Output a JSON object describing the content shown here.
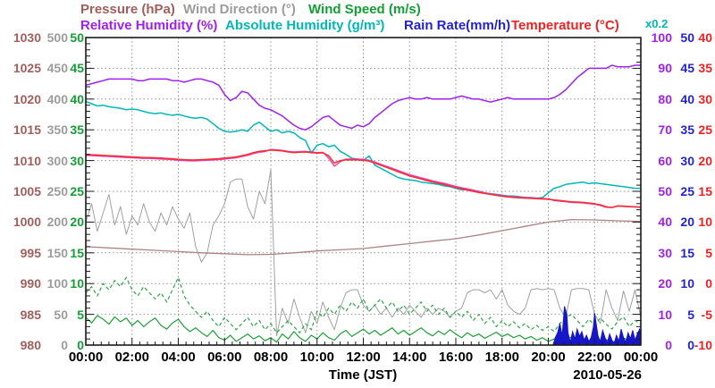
{
  "legend": {
    "row1": [
      {
        "id": "pressure",
        "label": "Pressure (hPa)",
        "color": "#a25d5d"
      },
      {
        "id": "wind-direction",
        "label": "Wind Direction (°)",
        "color": "#9c9c9c"
      },
      {
        "id": "wind-speed",
        "label": "Wind Speed (m/s)",
        "color": "#12a035"
      }
    ],
    "row2": [
      {
        "id": "relative-humidity",
        "label": "Relative Humidity (%)",
        "color": "#a020f0"
      },
      {
        "id": "absolute-humidity",
        "label": "Absolute Humidity (g/m³)",
        "color": "#00b7b7"
      },
      {
        "id": "rain-rate",
        "label": "Rain Rate(mm/h)",
        "color": "#2323cd"
      },
      {
        "id": "temperature",
        "label": "Temperature (°C)",
        "color": "#ee2222"
      }
    ],
    "scale_note": {
      "label": "x0.2",
      "color": "#00b7b7"
    }
  },
  "x_axis": {
    "labels": [
      "00:00",
      "02:00",
      "04:00",
      "06:00",
      "08:00",
      "10:00",
      "12:00",
      "14:00",
      "16:00",
      "18:00",
      "20:00",
      "22:00",
      "00:00"
    ],
    "title": "Time (JST)",
    "date": "2010-05-26"
  },
  "left_axes": [
    {
      "name": "pressure",
      "unit": "hPa",
      "color": "#a25d5d",
      "labels": [
        "1030",
        "1025",
        "1020",
        "1015",
        "1010",
        "1005",
        "1000",
        "995",
        "990",
        "985",
        "980"
      ]
    },
    {
      "name": "wind-direction",
      "unit": "deg",
      "color": "#9c9c9c",
      "labels": [
        "500",
        "450",
        "400",
        "350",
        "300",
        "250",
        "200",
        "150",
        "100",
        "50",
        "0"
      ]
    },
    {
      "name": "wind-speed",
      "unit": "m/s",
      "color": "#12a035",
      "labels": [
        "50",
        "45",
        "40",
        "35",
        "30",
        "25",
        "20",
        "15",
        "10",
        "5",
        "0"
      ]
    }
  ],
  "right_axes": [
    {
      "name": "relative-humidity",
      "unit": "%",
      "color": "#a020f0",
      "labels": [
        "100",
        "90",
        "80",
        "70",
        "60",
        "50",
        "40",
        "30",
        "20",
        "10",
        "0"
      ]
    },
    {
      "name": "rain-rate",
      "unit": "mm/h",
      "color": "#2323cd",
      "labels": [
        "50",
        "45",
        "40",
        "35",
        "30",
        "25",
        "20",
        "15",
        "10",
        "5",
        "0"
      ]
    },
    {
      "name": "temperature",
      "unit": "C",
      "color": "#ee2222",
      "labels": [
        "40",
        "35",
        "30",
        "25",
        "20",
        "15",
        "10",
        "5",
        "0",
        "-5",
        "-10"
      ]
    }
  ],
  "chart_data": {
    "type": "line",
    "title": "Weather observations, 2010-05-26, Time (JST)",
    "x_range_hours": [
      0,
      24
    ],
    "grid": {
      "x_step_hours": 2,
      "y_divisions": 10
    },
    "axes": {
      "pressure": {
        "min": 980,
        "max": 1030
      },
      "wind_direction": {
        "min": 0,
        "max": 500
      },
      "wind_speed": {
        "min": 0,
        "max": 50
      },
      "relative_humidity": {
        "min": 0,
        "max": 100
      },
      "absolute_humidity": {
        "min": 0,
        "max": 20,
        "note": "plotted on humidity axis x0.2"
      },
      "rain_rate": {
        "min": 0,
        "max": 50
      },
      "temperature": {
        "min": -10,
        "max": 40
      }
    },
    "series": [
      {
        "name": "wind_direction",
        "axis": "wind_direction",
        "color": "#a0a0a0",
        "width": 1,
        "x_step_min": 15,
        "values": [
          200,
          230,
          185,
          215,
          245,
          195,
          225,
          180,
          210,
          195,
          230,
          200,
          185,
          215,
          195,
          225,
          205,
          190,
          215,
          160,
          135,
          150,
          195,
          210,
          230,
          265,
          270,
          270,
          225,
          205,
          250,
          230,
          285,
          15,
          60,
          35,
          75,
          45,
          20,
          55,
          35,
          70,
          45,
          25,
          60,
          85,
          90,
          90,
          65,
          55,
          65,
          50,
          60,
          45,
          60,
          50,
          65,
          55,
          45,
          60,
          50,
          60,
          55,
          45,
          55,
          60,
          85,
          90,
          90,
          85,
          90,
          75,
          90,
          65,
          55,
          50,
          60,
          90,
          92,
          90,
          92,
          90,
          60,
          45,
          90,
          92,
          92,
          90,
          50,
          35,
          90,
          60,
          40,
          88,
          55,
          90,
          45
        ]
      },
      {
        "name": "pressure",
        "axis": "pressure",
        "color": "#ad8484",
        "width": 1.3,
        "x_step_min": 60,
        "values": [
          996.0,
          995.8,
          995.6,
          995.4,
          995.2,
          995.0,
          994.85,
          994.7,
          994.75,
          995.0,
          995.3,
          995.5,
          995.7,
          996.1,
          996.5,
          996.9,
          997.3,
          997.9,
          998.6,
          999.3,
          1000.0,
          1000.4,
          1000.35,
          1000.2,
          1000.1
        ]
      },
      {
        "name": "wind_gust",
        "axis": "wind_speed",
        "color": "#2aa546",
        "width": 1.2,
        "dash": "4 3",
        "x_step_min": 15,
        "values": [
          8.5,
          9.5,
          8.0,
          10.0,
          9.0,
          10.5,
          9.5,
          11.0,
          9.0,
          8.0,
          9.5,
          8.5,
          7.5,
          8.5,
          7.0,
          9.0,
          11.0,
          8.0,
          6.5,
          5.5,
          4.5,
          5.5,
          4.0,
          3.0,
          4.5,
          3.5,
          2.5,
          3.5,
          4.5,
          3.0,
          4.0,
          2.5,
          3.5,
          2.0,
          3.0,
          4.0,
          3.0,
          2.0,
          3.5,
          2.5,
          5.5,
          4.5,
          6.0,
          5.0,
          6.5,
          5.5,
          7.0,
          6.0,
          7.5,
          5.5,
          6.5,
          7.5,
          6.0,
          7.0,
          5.5,
          6.5,
          5.0,
          6.0,
          7.0,
          5.5,
          6.5,
          5.0,
          6.0,
          4.5,
          5.5,
          4.5,
          5.5,
          4.0,
          5.0,
          3.5,
          4.5,
          3.0,
          4.0,
          3.0,
          3.8,
          2.8,
          3.5,
          2.5,
          3.2,
          2.4,
          3.0,
          2.2,
          3.5,
          4.5,
          5.0,
          4.0,
          3.0,
          4.2,
          3.2,
          4.4,
          3.4,
          2.6,
          3.8,
          4.6,
          3.0,
          4.0,
          3.4
        ]
      },
      {
        "name": "wind_speed",
        "axis": "wind_speed",
        "color": "#18a035",
        "width": 1.2,
        "x_step_min": 15,
        "values": [
          4.5,
          3.6,
          4.8,
          4.2,
          3.4,
          4.6,
          3.8,
          4.4,
          3.2,
          4.0,
          3.0,
          3.8,
          4.4,
          3.2,
          2.6,
          3.6,
          4.2,
          3.0,
          2.2,
          2.8,
          2.0,
          1.4,
          2.4,
          1.2,
          0.8,
          1.6,
          0.6,
          1.2,
          1.8,
          1.0,
          1.5,
          0.7,
          1.2,
          0.5,
          1.8,
          1.0,
          2.2,
          1.2,
          0.6,
          1.6,
          1.0,
          2.0,
          1.2,
          0.8,
          1.8,
          2.4,
          1.4,
          2.0,
          2.6,
          1.8,
          2.4,
          1.6,
          2.2,
          2.8,
          1.8,
          2.4,
          1.6,
          2.2,
          2.8,
          2.0,
          1.5,
          2.3,
          1.7,
          2.5,
          1.8,
          1.2,
          2.0,
          1.4,
          1.8,
          1.1,
          1.6,
          2.1,
          1.4,
          1.8,
          1.2,
          1.6,
          1.0,
          1.4,
          0.8,
          1.2,
          0.6,
          1.0,
          0.5,
          0.9,
          1.3,
          0.7,
          1.1,
          0.6,
          1.0,
          0.5,
          0.9,
          0.4,
          0.8,
          1.2,
          0.6,
          1.0,
          0.7
        ]
      },
      {
        "name": "rain_rate",
        "axis": "rain_rate",
        "color": "#1717c9",
        "type": "area",
        "width": 1,
        "points": [
          [
            0,
            0
          ],
          [
            20.2,
            0
          ],
          [
            20.3,
            1.2
          ],
          [
            20.4,
            2.0
          ],
          [
            20.5,
            3.5
          ],
          [
            20.6,
            1.5
          ],
          [
            20.7,
            6.3
          ],
          [
            20.8,
            5.0
          ],
          [
            20.85,
            2.0
          ],
          [
            20.95,
            0.5
          ],
          [
            21.05,
            2.2
          ],
          [
            21.15,
            1.0
          ],
          [
            21.25,
            2.6
          ],
          [
            21.35,
            1.4
          ],
          [
            21.45,
            2.2
          ],
          [
            21.55,
            0.8
          ],
          [
            21.65,
            1.6
          ],
          [
            21.75,
            0.6
          ],
          [
            21.85,
            1.2
          ],
          [
            21.95,
            3.0
          ],
          [
            22.0,
            5.2
          ],
          [
            22.05,
            4.0
          ],
          [
            22.15,
            1.5
          ],
          [
            22.25,
            0.6
          ],
          [
            22.35,
            2.4
          ],
          [
            22.45,
            1.2
          ],
          [
            22.55,
            0.4
          ],
          [
            22.65,
            1.8
          ],
          [
            22.75,
            0.8
          ],
          [
            22.85,
            0.3
          ],
          [
            22.95,
            1.6
          ],
          [
            23.05,
            0.6
          ],
          [
            23.15,
            2.6
          ],
          [
            23.25,
            1.2
          ],
          [
            23.35,
            0.5
          ],
          [
            23.45,
            2.0
          ],
          [
            23.55,
            1.0
          ],
          [
            23.65,
            2.4
          ],
          [
            23.75,
            0.8
          ],
          [
            23.85,
            1.8
          ],
          [
            23.95,
            2.6
          ],
          [
            24,
            2.0
          ],
          [
            24,
            0
          ]
        ]
      },
      {
        "name": "absolute_humidity",
        "axis": "absolute_humidity",
        "color": "#00b7b7",
        "width": 1.5,
        "x_step_min": 15,
        "values": [
          15.85,
          15.7,
          15.55,
          15.6,
          15.5,
          15.45,
          15.4,
          15.3,
          15.35,
          15.3,
          15.2,
          15.1,
          15.05,
          15.1,
          15.0,
          14.95,
          15.0,
          14.9,
          14.8,
          14.75,
          14.8,
          14.7,
          14.4,
          14.1,
          13.9,
          13.85,
          13.9,
          14.0,
          13.9,
          14.3,
          14.5,
          14.2,
          13.9,
          14.0,
          13.8,
          13.9,
          13.8,
          13.5,
          13.3,
          12.5,
          13.0,
          13.1,
          12.9,
          13.0,
          12.6,
          12.4,
          12.15,
          12.1,
          12.0,
          12.3,
          11.7,
          11.5,
          11.3,
          11.1,
          10.9,
          10.8,
          10.75,
          10.7,
          10.6,
          10.55,
          10.5,
          10.45,
          10.35,
          10.3,
          10.2,
          10.1,
          10.1,
          10.05,
          10.0,
          9.9,
          9.85,
          9.8,
          9.75,
          9.7,
          9.7,
          9.65,
          9.6,
          9.6,
          9.55,
          9.6,
          9.9,
          10.2,
          10.3,
          10.45,
          10.5,
          10.55,
          10.6,
          10.5,
          10.55,
          10.5,
          10.45,
          10.4,
          10.35,
          10.3,
          10.25,
          10.2,
          10.2
        ]
      },
      {
        "name": "temperature_b",
        "axis": "temperature",
        "color": "#f03ab4",
        "width": 1.4,
        "x_step_min": 15,
        "values": [
          20.85,
          20.8,
          20.75,
          20.7,
          20.65,
          20.6,
          20.55,
          20.5,
          20.45,
          20.4,
          20.35,
          20.35,
          20.3,
          20.25,
          20.2,
          20.15,
          20.05,
          20.0,
          19.95,
          19.95,
          20.0,
          20.05,
          20.1,
          20.15,
          20.25,
          20.35,
          20.45,
          20.65,
          20.85,
          21.15,
          21.35,
          21.45,
          21.8,
          21.75,
          21.65,
          21.5,
          21.4,
          21.45,
          21.5,
          21.4,
          21.3,
          21.35,
          20.4,
          19.1,
          19.8,
          20.25,
          20.25,
          20.25,
          20.2,
          20.05,
          19.75,
          19.4,
          19.05,
          18.75,
          18.4,
          18.05,
          17.7,
          17.45,
          17.2,
          16.95,
          16.7,
          16.5,
          16.3,
          16.05,
          15.8,
          15.6,
          15.4,
          15.2,
          15.0,
          14.75,
          14.6,
          14.45,
          14.3,
          14.2,
          14.1,
          14.05,
          14.0,
          13.95,
          13.9,
          13.85,
          13.8,
          13.5,
          13.4,
          13.3,
          13.2,
          13.15,
          13.1,
          13.0,
          12.9,
          12.7,
          12.4,
          12.4,
          12.65,
          12.6,
          12.55,
          12.5,
          12.45
        ]
      },
      {
        "name": "temperature",
        "axis": "temperature",
        "color": "#f03030",
        "width": 1.5,
        "x_step_min": 15,
        "values": [
          21.0,
          20.95,
          20.9,
          20.85,
          20.8,
          20.75,
          20.7,
          20.65,
          20.6,
          20.55,
          20.5,
          20.5,
          20.45,
          20.4,
          20.35,
          20.3,
          20.2,
          20.15,
          20.1,
          20.1,
          20.15,
          20.2,
          20.25,
          20.3,
          20.4,
          20.5,
          20.6,
          20.8,
          21.0,
          21.3,
          21.5,
          21.6,
          21.7,
          21.65,
          21.55,
          21.4,
          21.3,
          21.35,
          21.4,
          21.3,
          21.2,
          21.25,
          20.8,
          19.6,
          20.0,
          20.1,
          20.1,
          20.1,
          20.05,
          19.9,
          19.6,
          19.25,
          18.9,
          18.55,
          18.2,
          17.85,
          17.5,
          17.25,
          17.0,
          16.75,
          16.5,
          16.3,
          16.1,
          15.85,
          15.6,
          15.4,
          15.2,
          15.0,
          14.8,
          14.65,
          14.5,
          14.35,
          14.2,
          14.1,
          14.0,
          13.95,
          13.9,
          13.85,
          13.8,
          13.75,
          13.7,
          13.6,
          13.5,
          13.4,
          13.3,
          13.25,
          13.2,
          13.1,
          13.0,
          12.8,
          12.5,
          12.35,
          12.6,
          12.55,
          12.5,
          12.45,
          12.4
        ]
      },
      {
        "name": "relative_humidity",
        "axis": "relative_humidity",
        "color": "#a020f0",
        "width": 1.5,
        "x_step_min": 15,
        "values": [
          84.5,
          85,
          85.5,
          86,
          86.5,
          86.5,
          86.5,
          86.5,
          86.5,
          86,
          86,
          86.5,
          86.5,
          86.5,
          86.5,
          86,
          86,
          85.5,
          86,
          86.5,
          86.5,
          86,
          85.5,
          84.5,
          81.5,
          79.5,
          80.5,
          82.5,
          82,
          80,
          78,
          77,
          76.5,
          75.5,
          74.5,
          73,
          71.5,
          70.5,
          70,
          71,
          72.5,
          74,
          74.5,
          73,
          71.5,
          71,
          70.5,
          71.5,
          71,
          72,
          74,
          75.5,
          77,
          78.5,
          79.5,
          80,
          80.5,
          80,
          80,
          80.5,
          80,
          80,
          80,
          80,
          80.5,
          81,
          80.5,
          80,
          80,
          79.5,
          79,
          79.5,
          80,
          80.5,
          80,
          80,
          80,
          80,
          80,
          80,
          80,
          80.5,
          81.5,
          83,
          85,
          87,
          88.5,
          90,
          90,
          90,
          90,
          91,
          90.5,
          90.5,
          90.5,
          91,
          91
        ]
      }
    ]
  }
}
